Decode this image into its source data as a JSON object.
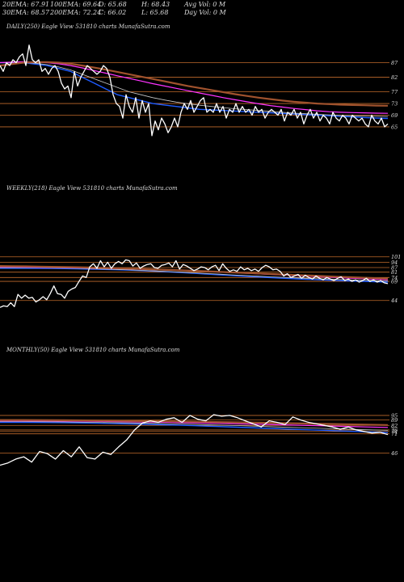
{
  "header": {
    "rows": [
      [
        "20EMA: 67.91",
        "100EMA: 69.64",
        "O: 65.68",
        "H: 68.43",
        "Avg Vol: 0  M"
      ],
      [
        "30EMA: 68.57",
        "200EMA: 72.24",
        "C: 66.02",
        "L: 65.68",
        "Day Vol: 0  M"
      ]
    ]
  },
  "colors": {
    "background": "#000000",
    "price": "#ffffff",
    "ema_fast": "#1e5bff",
    "ema_slow": "#ff33ff",
    "ema_mid": "#c8c8c8",
    "ema_long": "#a0522d",
    "level_line": "#c06a2b",
    "level_label": "#dddddd",
    "title": "#dddddd"
  },
  "chart_data": [
    {
      "type": "line",
      "title": "DAILY(250) Eagle  View  531810  charts MunafaSutra.com",
      "ylim": [
        60,
        96
      ],
      "levels": [
        87,
        82,
        77,
        73,
        69,
        65
      ],
      "price": [
        86,
        84,
        87,
        86,
        88,
        87,
        89,
        90,
        86,
        93,
        88,
        87,
        88,
        84,
        85,
        83,
        85,
        86,
        84,
        80,
        78,
        79,
        75,
        84,
        79,
        82,
        84,
        86,
        85,
        84,
        83,
        84,
        86,
        85,
        82,
        76,
        73,
        72,
        68,
        76,
        72,
        70,
        75,
        68,
        74,
        70,
        73,
        62,
        67,
        64,
        68,
        66,
        63,
        65,
        68,
        65,
        70,
        73,
        71,
        74,
        70,
        72,
        74,
        75,
        70,
        71,
        70,
        73,
        70,
        72,
        68,
        71,
        70,
        73,
        70,
        72,
        70,
        71,
        69,
        72,
        70,
        71,
        68,
        70,
        71,
        70,
        69,
        71,
        67,
        70,
        69,
        71,
        68,
        70,
        66,
        69,
        71,
        68,
        70,
        67,
        69,
        68,
        66,
        70,
        68,
        67,
        69,
        68,
        66,
        69,
        68,
        67,
        68,
        66,
        65,
        69,
        67,
        66,
        68,
        65,
        66
      ],
      "series": [
        {
          "name": "20EMA",
          "values": [
            87,
            87,
            87,
            86.5,
            86,
            85,
            84,
            82,
            80,
            78,
            76,
            75,
            74,
            73,
            72.5,
            72,
            71.5,
            71,
            70.8,
            70.6,
            70.4,
            70.2,
            70,
            69.8,
            69.6,
            69.4,
            69.2,
            69,
            68.8,
            68.6,
            68.4,
            68.2,
            68,
            67.9
          ]
        },
        {
          "name": "30EMA",
          "values": [
            87,
            87,
            87,
            86.8,
            86.3,
            85.5,
            84.5,
            83,
            81.5,
            80,
            78.5,
            77,
            76,
            75,
            74.2,
            73.5,
            72.9,
            72.4,
            72,
            71.6,
            71.2,
            70.9,
            70.6,
            70.3,
            70,
            69.7,
            69.5,
            69.3,
            69.1,
            68.9,
            68.8,
            68.7,
            68.6,
            68.57
          ]
        },
        {
          "name": "100EMA",
          "values": [
            87,
            87.2,
            87.3,
            87.2,
            87,
            86.6,
            86,
            85.2,
            84.3,
            83.4,
            82.5,
            81.6,
            80.7,
            79.8,
            79,
            78.2,
            77.4,
            76.6,
            75.8,
            75,
            74.3,
            73.6,
            72.9,
            72.3,
            71.8,
            71.3,
            70.9,
            70.5,
            70.2,
            70,
            69.9,
            69.8,
            69.7,
            69.64
          ]
        },
        {
          "name": "200EMA",
          "values": [
            86,
            86.5,
            87,
            87.2,
            87.2,
            87,
            86.6,
            86,
            85.3,
            84.6,
            83.8,
            83,
            82.2,
            81.4,
            80.6,
            79.8,
            79,
            78.3,
            77.6,
            76.9,
            76.2,
            75.6,
            75,
            74.5,
            74,
            73.6,
            73.3,
            73,
            72.8,
            72.6,
            72.5,
            72.4,
            72.3,
            72.24
          ]
        }
      ]
    },
    {
      "type": "line",
      "title": "WEEKLY(218) Eagle  View  531810  charts MunafaSutra.com",
      "ylim": [
        30,
        125
      ],
      "levels": [
        101,
        94,
        87,
        81,
        74,
        69,
        44
      ],
      "price": [
        35,
        37,
        36,
        41,
        36,
        52,
        47,
        51,
        47,
        48,
        42,
        45,
        49,
        45,
        53,
        63,
        53,
        52,
        47,
        56,
        59,
        61,
        69,
        76,
        74,
        88,
        92,
        86,
        96,
        88,
        94,
        86,
        92,
        95,
        92,
        97,
        96,
        89,
        93,
        86,
        89,
        91,
        92,
        87,
        86,
        90,
        91,
        93,
        88,
        96,
        85,
        91,
        89,
        86,
        83,
        85,
        88,
        87,
        84,
        88,
        90,
        83,
        92,
        86,
        82,
        84,
        82,
        88,
        84,
        86,
        83,
        85,
        82,
        87,
        90,
        88,
        84,
        85,
        82,
        76,
        79,
        74,
        76,
        78,
        73,
        77,
        74,
        72,
        76,
        73,
        71,
        74,
        72,
        70,
        73,
        75,
        70,
        72,
        69,
        71,
        68,
        70,
        73,
        69,
        71,
        68,
        70,
        67,
        66
      ],
      "series": [
        {
          "name": "20EMA",
          "values": [
            86,
            86,
            86,
            86,
            85.8,
            85.6,
            85.3,
            85,
            84.6,
            84.2,
            83.6,
            83,
            82.2,
            81.4,
            80.5,
            79.5,
            78.5,
            77.5,
            76.5,
            75.5,
            74.6,
            73.8,
            73,
            72.2,
            71.5,
            70.8,
            70.2,
            69.6,
            69,
            68.5,
            68
          ]
        },
        {
          "name": "30EMA",
          "values": [
            87,
            87,
            87,
            86.9,
            86.7,
            86.4,
            86,
            85.6,
            85.1,
            84.6,
            84,
            83.3,
            82.6,
            81.8,
            81,
            80.1,
            79.2,
            78.3,
            77.4,
            76.5,
            75.7,
            74.9,
            74.2,
            73.5,
            72.8,
            72.1,
            71.5,
            70.9,
            70.4,
            69.9,
            69.5
          ]
        },
        {
          "name": "100EMA",
          "values": [
            88,
            87.8,
            87.6,
            87.4,
            87.2,
            87,
            86.7,
            86.4,
            86,
            85.6,
            85.2,
            84.7,
            84.2,
            83.7,
            83.1,
            82.5,
            81.8,
            81.1,
            80.4,
            79.6,
            78.8,
            78,
            77.2,
            76.4,
            75.6,
            74.8,
            74,
            73.2,
            72.5,
            71.8,
            71.2
          ]
        },
        {
          "name": "200EMA",
          "values": [
            89,
            88.8,
            88.6,
            88.3,
            88,
            87.7,
            87.4,
            87,
            86.6,
            86.2,
            85.7,
            85.2,
            84.6,
            84,
            83.4,
            82.8,
            82.1,
            81.4,
            80.7,
            80,
            79.3,
            78.6,
            77.9,
            77.2,
            76.5,
            75.8,
            75.1,
            74.4,
            73.8,
            73.2,
            72.6
          ]
        }
      ]
    },
    {
      "type": "line",
      "title": "MONTHLY(50) Eagle  View  531810  charts MunafaSutra.com",
      "ylim": [
        20,
        115
      ],
      "levels": [
        95,
        89,
        82,
        76,
        74,
        71,
        46
      ],
      "price": [
        30,
        33,
        38,
        41,
        34,
        48,
        45,
        38,
        49,
        41,
        54,
        40,
        38,
        47,
        44,
        54,
        63,
        76,
        85,
        88,
        86,
        90,
        92,
        86,
        95,
        90,
        88,
        96,
        94,
        95,
        92,
        88,
        84,
        80,
        88,
        86,
        83,
        93,
        89,
        86,
        84,
        82,
        80,
        77,
        80,
        76,
        74,
        72,
        73,
        70
      ],
      "series": [
        {
          "name": "20EMA",
          "values": [
            86,
            86,
            85.8,
            85.5,
            85.1,
            84.6,
            84,
            83.3,
            82.5,
            81.6,
            80.6,
            79.6,
            78.6,
            77.6,
            76.6,
            75.6,
            74.6,
            73.6,
            72.7
          ]
        },
        {
          "name": "30EMA",
          "values": [
            87,
            87,
            86.8,
            86.5,
            86.1,
            85.7,
            85.2,
            84.6,
            84,
            83.3,
            82.5,
            81.7,
            80.8,
            79.9,
            79,
            78.1,
            77.2,
            76.3,
            75.5
          ]
        },
        {
          "name": "100EMA",
          "values": [
            88,
            88,
            87.9,
            87.7,
            87.4,
            87.1,
            86.7,
            86.3,
            85.8,
            85.3,
            84.7,
            84.1,
            83.5,
            82.8,
            82.1,
            81.4,
            80.7,
            80,
            79.3
          ]
        },
        {
          "name": "200EMA",
          "values": [
            89,
            89,
            88.9,
            88.7,
            88.5,
            88.2,
            87.9,
            87.6,
            87.2,
            86.8,
            86.4,
            86,
            85.5,
            85,
            84.5,
            84,
            83.5,
            83,
            82.5
          ]
        }
      ]
    }
  ]
}
